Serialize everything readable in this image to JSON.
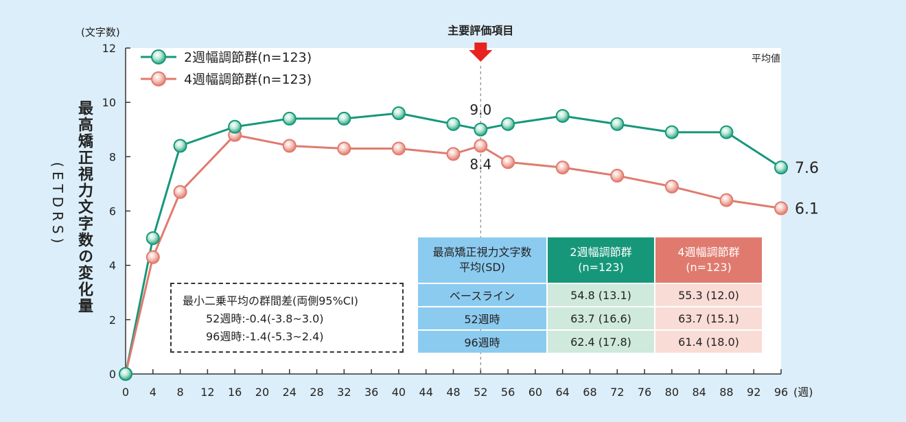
{
  "chart_data": {
    "type": "line",
    "yunit": "(文字数)",
    "ylabel_main": "最高矯正視力文字数の変化量",
    "ylabel_sub": "ETDRS",
    "xunit": "(週)",
    "ylim": [
      0,
      12
    ],
    "yticks": [
      0,
      2,
      4,
      6,
      8,
      10,
      12
    ],
    "xticks": [
      0,
      4,
      8,
      12,
      16,
      20,
      24,
      28,
      32,
      36,
      40,
      44,
      48,
      52,
      56,
      60,
      64,
      68,
      72,
      76,
      80,
      84,
      88,
      92,
      96
    ],
    "legend_position": "top-left",
    "corner_note": "平均値",
    "primary_endpoint_label": "主要評価項目",
    "primary_endpoint_x": 52,
    "series": [
      {
        "name": "2週幅調節群(n=123)",
        "color": "#16977a",
        "x": [
          0,
          4,
          8,
          16,
          24,
          32,
          40,
          48,
          52,
          56,
          64,
          72,
          80,
          88,
          96
        ],
        "values": [
          0,
          5.0,
          8.4,
          9.1,
          9.4,
          9.4,
          9.6,
          9.2,
          9.0,
          9.2,
          9.5,
          9.2,
          8.9,
          8.9,
          7.6
        ]
      },
      {
        "name": "4週幅調節群(n=123)",
        "color": "#e07a6e",
        "x": [
          0,
          4,
          8,
          16,
          24,
          32,
          40,
          48,
          52,
          56,
          64,
          72,
          80,
          88,
          96
        ],
        "values": [
          0,
          4.3,
          6.7,
          8.8,
          8.4,
          8.3,
          8.3,
          8.1,
          8.4,
          7.8,
          7.6,
          7.3,
          6.9,
          6.4,
          6.1
        ]
      }
    ],
    "annotations": {
      "g2_at_52": "9.0",
      "g4_at_52": "8.4",
      "g2_end": "7.6",
      "g4_end": "6.1"
    }
  },
  "diff_box": {
    "title": "最小二乗平均の群間差(両側95%CI)",
    "row1": "52週時:-0.4(-3.8~3.0)",
    "row2": "96週時:-1.4(-5.3~2.4)"
  },
  "stats_table": {
    "header_label_line1": "最高矯正視力文字数",
    "header_label_line2": "平均(SD)",
    "g2_line1": "2週幅調節群",
    "g2_line2": "(n=123)",
    "g4_line1": "4週幅調節群",
    "g4_line2": "(n=123)",
    "rows": [
      {
        "label": "ベースライン",
        "g2": "54.8 (13.1)",
        "g4": "55.3 (12.0)"
      },
      {
        "label": "52週時",
        "g2": "63.7 (16.6)",
        "g4": "63.7 (15.1)"
      },
      {
        "label": "96週時",
        "g2": "62.4 (17.8)",
        "g4": "61.4 (18.0)"
      }
    ]
  }
}
